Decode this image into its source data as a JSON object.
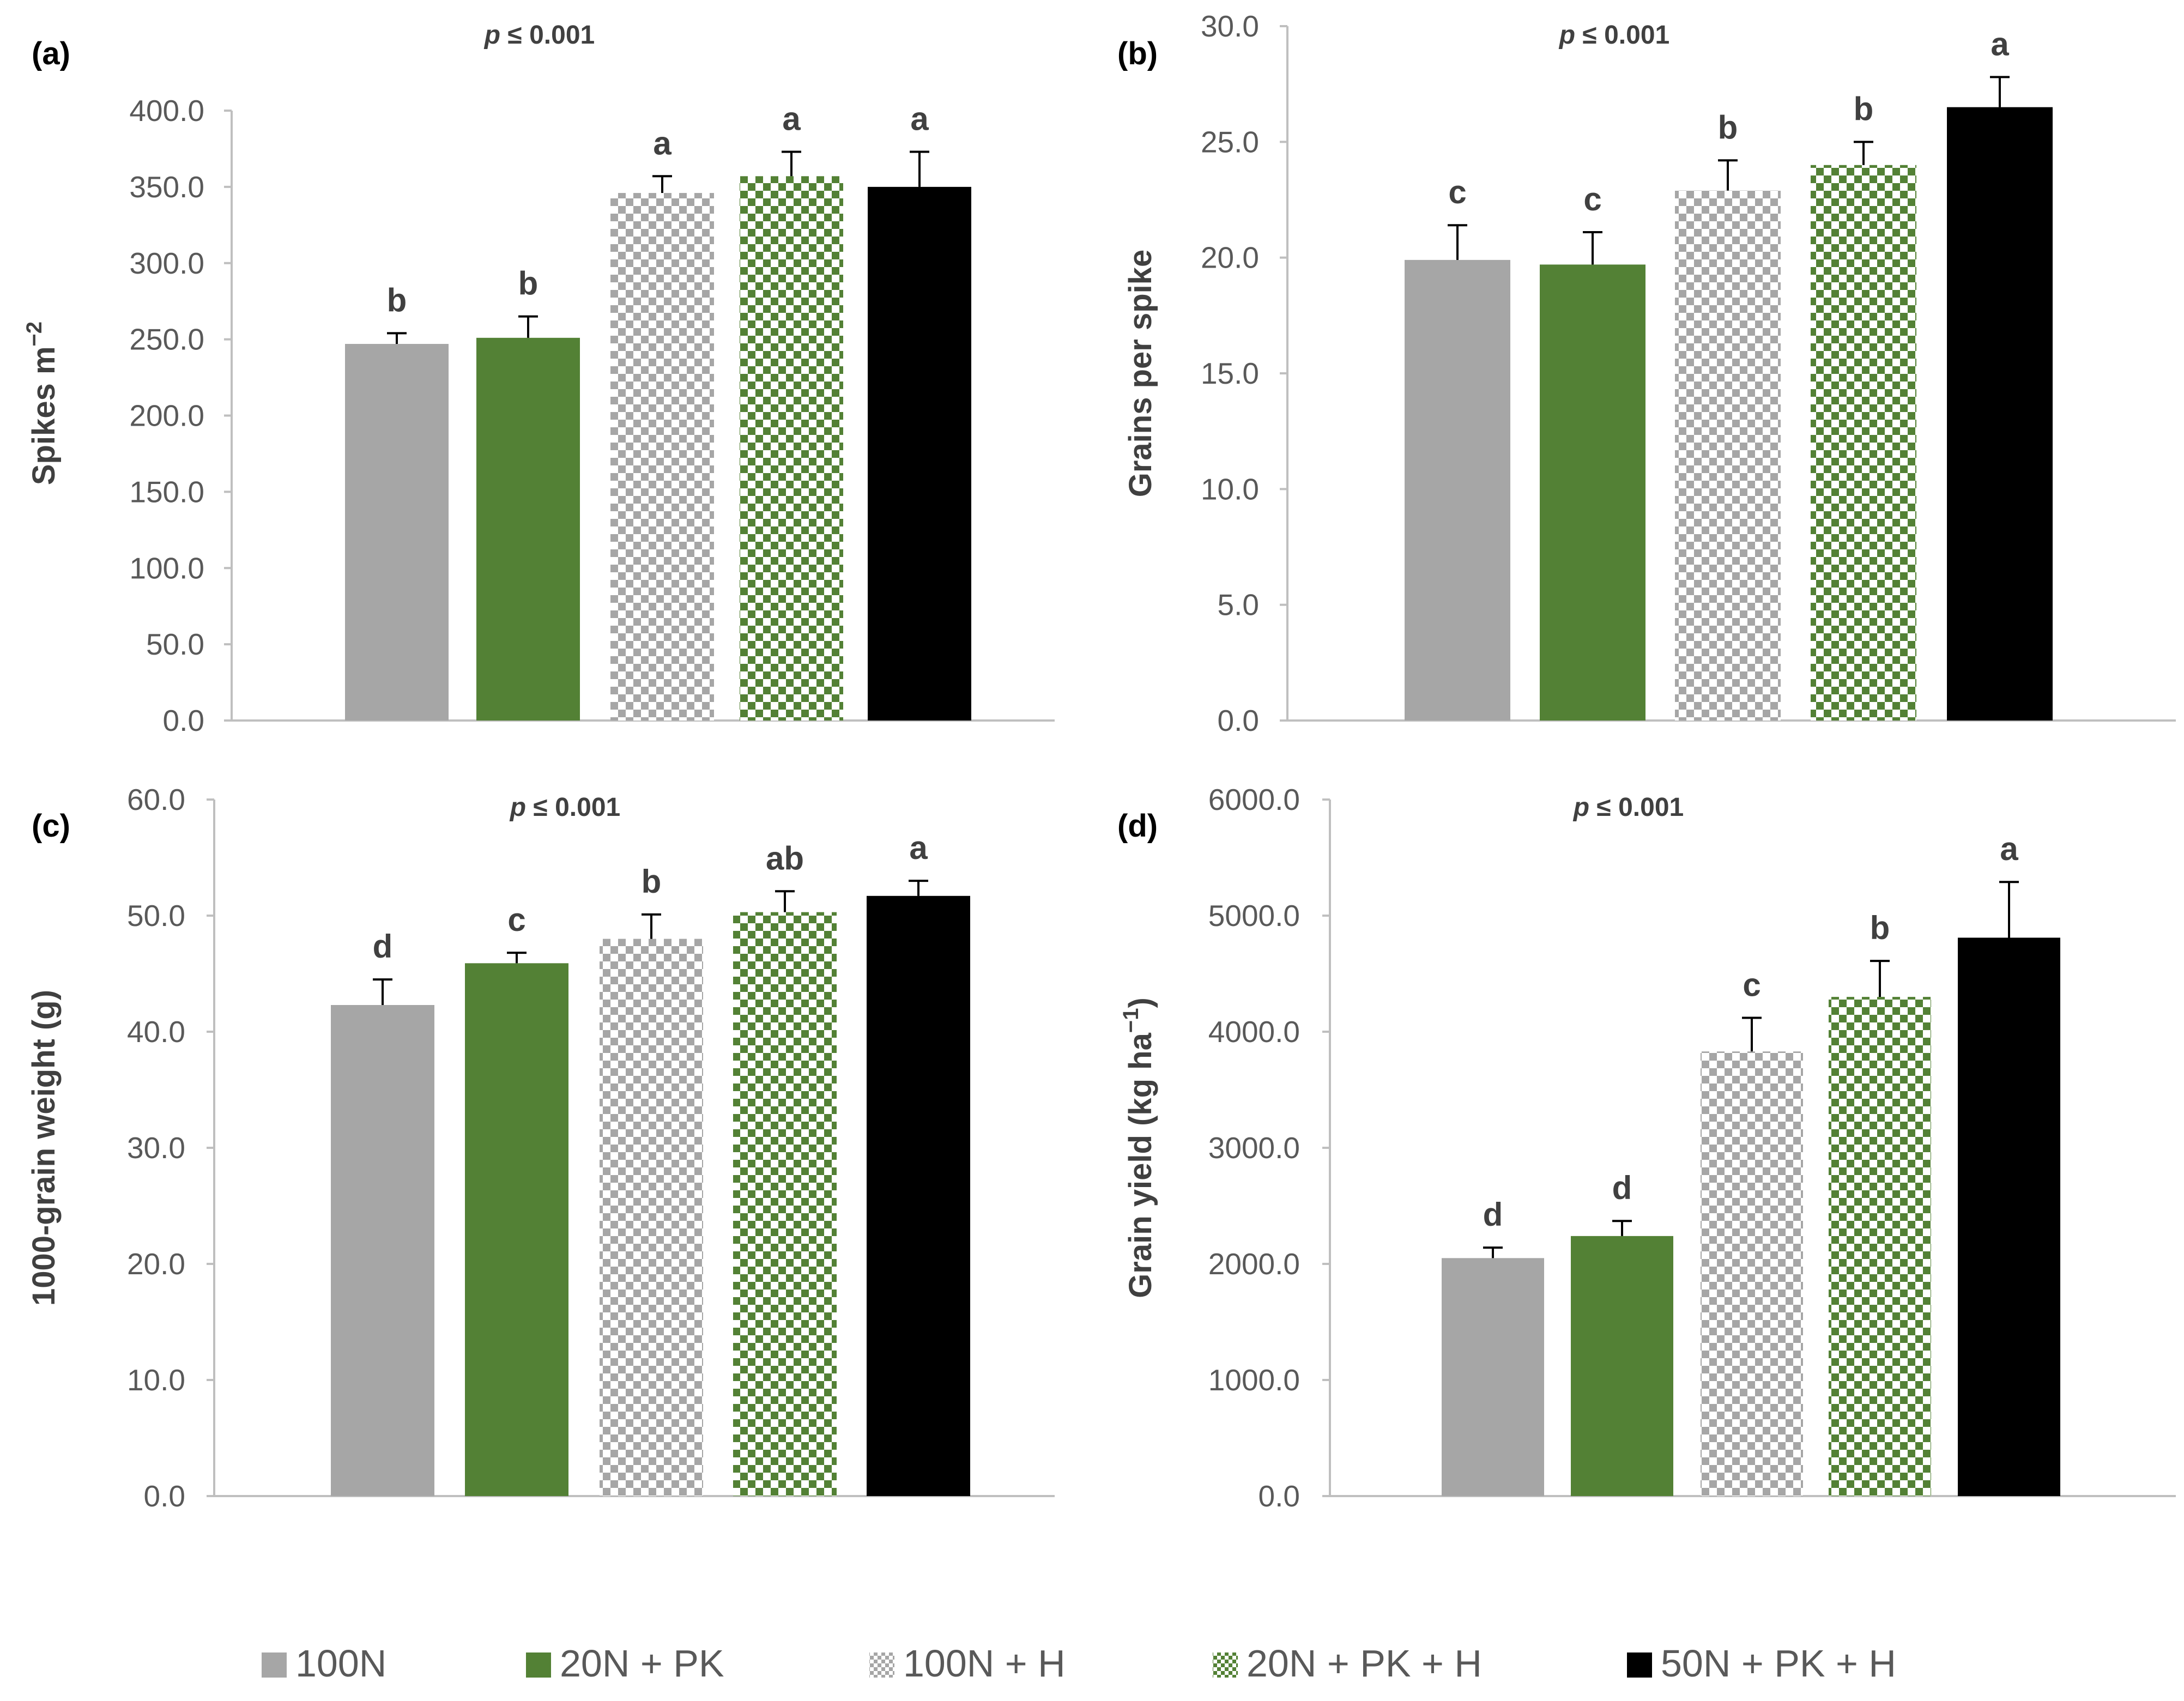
{
  "legend": [
    {
      "label": "100N",
      "pattern": "solid-gray"
    },
    {
      "label": "20N + PK",
      "pattern": "solid-green"
    },
    {
      "label": "100N + H",
      "pattern": "checker-gray"
    },
    {
      "label": "20N + PK + H",
      "pattern": "checker-green"
    },
    {
      "label": "50N + PK + H",
      "pattern": "solid-black"
    }
  ],
  "colors": {
    "gray": "#a6a6a6",
    "green": "#538135",
    "black": "#000000",
    "checker_light": "#ffffff",
    "axis": "#bfbfbf",
    "tick_text": "#595959",
    "label_text": "#404040"
  },
  "chart_data": [
    {
      "type": "bar",
      "panel": "(a)",
      "pvalue": "p ≤ 0.001",
      "ylabel": "Spikes m",
      "ylabel_sup": "−2",
      "ylim": [
        0,
        400
      ],
      "yticks": [
        "0.0",
        "50.0",
        "100.0",
        "150.0",
        "200.0",
        "250.0",
        "300.0",
        "350.0",
        "400.0"
      ],
      "categories": [
        "100N",
        "20N + PK",
        "100N + H",
        "20N + PK + H",
        "50N + PK + H"
      ],
      "values": [
        247,
        251,
        346,
        357,
        350
      ],
      "errors": [
        7,
        14,
        11,
        16,
        23
      ],
      "letters": [
        "b",
        "b",
        "a",
        "a",
        "a"
      ]
    },
    {
      "type": "bar",
      "panel": "(b)",
      "pvalue": "p ≤ 0.001",
      "ylabel": "Grains per spike",
      "ylabel_sup": "",
      "ylim": [
        0,
        30
      ],
      "yticks": [
        "0.0",
        "5.0",
        "10.0",
        "15.0",
        "20.0",
        "25.0",
        "30.0"
      ],
      "categories": [
        "100N",
        "20N + PK",
        "100N + H",
        "20N + PK + H",
        "50N + PK + H"
      ],
      "values": [
        19.9,
        19.7,
        22.9,
        24.0,
        26.5
      ],
      "errors": [
        1.5,
        1.4,
        1.3,
        1.0,
        1.3
      ],
      "letters": [
        "c",
        "c",
        "b",
        "b",
        "a"
      ]
    },
    {
      "type": "bar",
      "panel": "(c)",
      "pvalue": "p ≤ 0.001",
      "ylabel": "1000-grain weight (g)",
      "ylabel_sup": "",
      "ylim": [
        0,
        60
      ],
      "yticks": [
        "0.0",
        "10.0",
        "20.0",
        "30.0",
        "40.0",
        "50.0",
        "60.0"
      ],
      "categories": [
        "100N",
        "20N + PK",
        "100N + H",
        "20N + PK + H",
        "50N + PK + H"
      ],
      "values": [
        42.3,
        45.9,
        48.0,
        50.3,
        51.7
      ],
      "errors": [
        2.2,
        0.9,
        2.1,
        1.8,
        1.3
      ],
      "letters": [
        "d",
        "c",
        "b",
        "ab",
        "a"
      ]
    },
    {
      "type": "bar",
      "panel": "(d)",
      "pvalue": "p ≤ 0.001",
      "ylabel": "Grain yield (kg ha",
      "ylabel_sup": "−1",
      "ylabel_tail": ")",
      "ylim": [
        0,
        6000
      ],
      "yticks": [
        "0.0",
        "1000.0",
        "2000.0",
        "3000.0",
        "4000.0",
        "5000.0",
        "6000.0"
      ],
      "categories": [
        "100N",
        "20N + PK",
        "100N + H",
        "20N + PK + H",
        "50N + PK + H"
      ],
      "values": [
        2050,
        2240,
        3830,
        4300,
        4810
      ],
      "errors": [
        90,
        130,
        290,
        310,
        480
      ],
      "letters": [
        "d",
        "d",
        "c",
        "b",
        "a"
      ]
    }
  ]
}
